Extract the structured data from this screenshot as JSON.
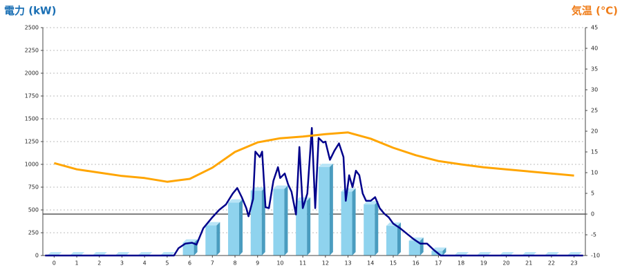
{
  "chart_data": {
    "type": "combo",
    "y_title": "電力 (kW)",
    "y2_title": "気温 (℃)",
    "xlim": [
      -0.5,
      23.5
    ],
    "xticks": [
      0,
      1,
      2,
      3,
      4,
      5,
      6,
      7,
      8,
      9,
      10,
      11,
      12,
      13,
      14,
      15,
      16,
      17,
      18,
      19,
      20,
      21,
      22,
      23
    ],
    "ylim": [
      0,
      2500
    ],
    "yticks": [
      0,
      250,
      500,
      750,
      1000,
      1250,
      1500,
      1750,
      2000,
      2250,
      2500
    ],
    "y2lim": [
      -10,
      45
    ],
    "y2ticks": [
      -10,
      -5,
      0,
      5,
      10,
      15,
      20,
      25,
      30,
      35,
      40,
      45
    ],
    "grid": true,
    "series": [
      {
        "type": "bar",
        "color": "#8fd3ee",
        "x": [
          0,
          1,
          2,
          3,
          4,
          5,
          6,
          7,
          8,
          9,
          10,
          11,
          12,
          13,
          14,
          15,
          16,
          17,
          18,
          19,
          20,
          21,
          22,
          23
        ],
        "values": [
          0,
          0,
          0,
          0,
          0,
          0,
          140,
          330,
          580,
          710,
          730,
          600,
          970,
          700,
          560,
          325,
          160,
          50,
          0,
          0,
          0,
          0,
          0,
          0
        ]
      },
      {
        "type": "line",
        "color": "#00008b",
        "x": [
          -0.4,
          5.3,
          5.5,
          5.8,
          6.1,
          6.3,
          6.6,
          7.0,
          7.3,
          7.6,
          7.9,
          8.1,
          8.3,
          8.5,
          8.6,
          8.8,
          8.9,
          9.1,
          9.2,
          9.35,
          9.5,
          9.7,
          9.9,
          10.0,
          10.2,
          10.35,
          10.5,
          10.7,
          10.85,
          11.0,
          11.2,
          11.4,
          11.55,
          11.7,
          11.9,
          12.0,
          12.2,
          12.4,
          12.6,
          12.8,
          12.9,
          13.05,
          13.2,
          13.35,
          13.5,
          13.65,
          13.8,
          14.0,
          14.2,
          14.4,
          14.6,
          14.8,
          15.0,
          15.3,
          15.6,
          15.9,
          16.2,
          16.5,
          16.8,
          17.1,
          23.4
        ],
        "values": [
          0,
          0,
          80,
          130,
          140,
          120,
          300,
          420,
          500,
          560,
          680,
          740,
          640,
          520,
          430,
          620,
          1140,
          1080,
          1140,
          530,
          520,
          820,
          970,
          850,
          900,
          780,
          700,
          450,
          1190,
          520,
          680,
          1400,
          520,
          1290,
          1240,
          1250,
          1050,
          1150,
          1230,
          1080,
          600,
          880,
          750,
          930,
          880,
          680,
          600,
          600,
          640,
          520,
          460,
          420,
          350,
          300,
          240,
          180,
          130,
          130,
          60,
          0,
          0
        ]
      },
      {
        "type": "line",
        "axis": "y2",
        "color": "#ffa500",
        "x": [
          0,
          1,
          2,
          3,
          4,
          5,
          6,
          7,
          8,
          9,
          10,
          11,
          12,
          13,
          14,
          15,
          16,
          17,
          18,
          19,
          20,
          21,
          22,
          23
        ],
        "values": [
          12.3,
          10.8,
          10,
          9.2,
          8.7,
          7.8,
          8.5,
          11.2,
          15,
          17.3,
          18.3,
          18.7,
          19.3,
          19.7,
          18.2,
          16,
          14.2,
          12.8,
          12,
          11.3,
          10.8,
          10.3,
          9.8,
          9.3
        ]
      }
    ]
  }
}
